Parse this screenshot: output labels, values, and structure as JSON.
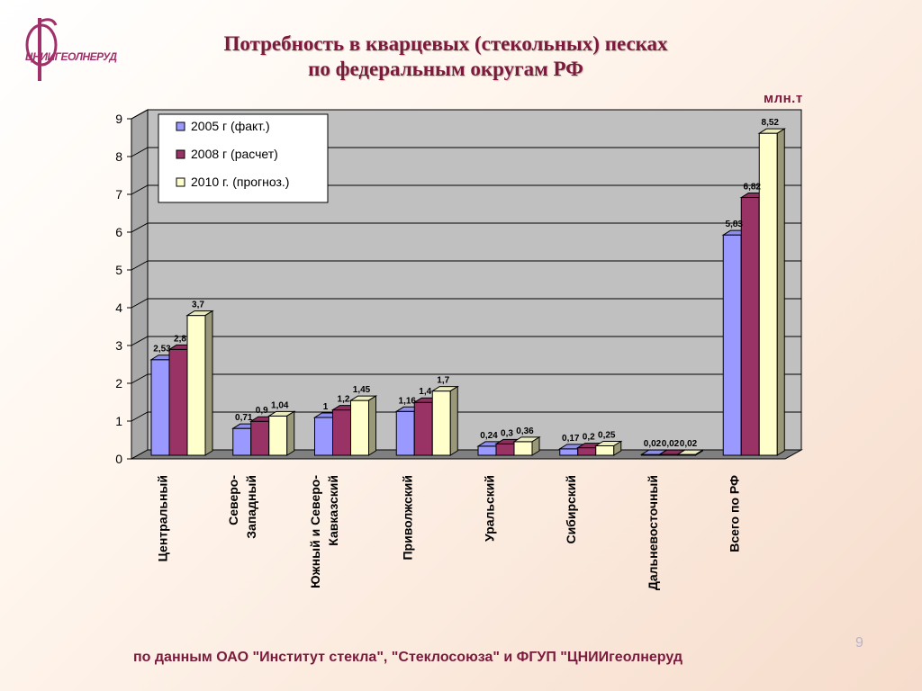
{
  "header": {
    "logo_text": "ЦНИИГЕОЛНЕРУД",
    "title_line1": "Потребность в кварцевых (стекольных) песках",
    "title_line2": "по федеральным округам РФ",
    "unit": "млн.т"
  },
  "footer": {
    "source": "по данным ОАО \"Институт стекла\", \"Стеклосоюза\" и ФГУП \"ЦНИИгеолнеруд",
    "page_number": "9"
  },
  "chart_data": {
    "type": "bar",
    "categories": [
      "Центральный",
      "Северо-\nЗападный",
      "Южный и Северо-\nКавказский",
      "Приволжский",
      "Уральский",
      "Сибирский",
      "Дальневосточный",
      "Всего по РФ"
    ],
    "series": [
      {
        "name": "2005 г (факт.)",
        "color": "#9999ff",
        "values": [
          2.53,
          0.71,
          1,
          1.16,
          0.24,
          0.17,
          0.02,
          5.83
        ],
        "labels": [
          "2,53",
          "0,71",
          "1",
          "1,16",
          "0,24",
          "0,17",
          "0,02",
          "5,83"
        ]
      },
      {
        "name": "2008 г (расчет)",
        "color": "#993366",
        "values": [
          2.8,
          0.9,
          1.2,
          1.4,
          0.3,
          0.2,
          0.02,
          6.82
        ],
        "labels": [
          "2,8",
          "0,9",
          "1,2",
          "1,4",
          "0,3",
          "0,2",
          "0,02",
          "6,82"
        ]
      },
      {
        "name": "2010 г. (прогноз.)",
        "color": "#ffffcc",
        "values": [
          3.7,
          1.04,
          1.45,
          1.7,
          0.36,
          0.25,
          0.02,
          8.52
        ],
        "labels": [
          "3,7",
          "1,04",
          "1,45",
          "1,7",
          "0,36",
          "0,25",
          "0,02",
          "8,52"
        ]
      }
    ],
    "yticks": [
      "0",
      "1",
      "2",
      "3",
      "4",
      "5",
      "6",
      "7",
      "8",
      "9"
    ],
    "ylim": [
      0,
      9
    ],
    "grid": true,
    "legend_position": "top-left",
    "xlabel": "",
    "ylabel": ""
  }
}
